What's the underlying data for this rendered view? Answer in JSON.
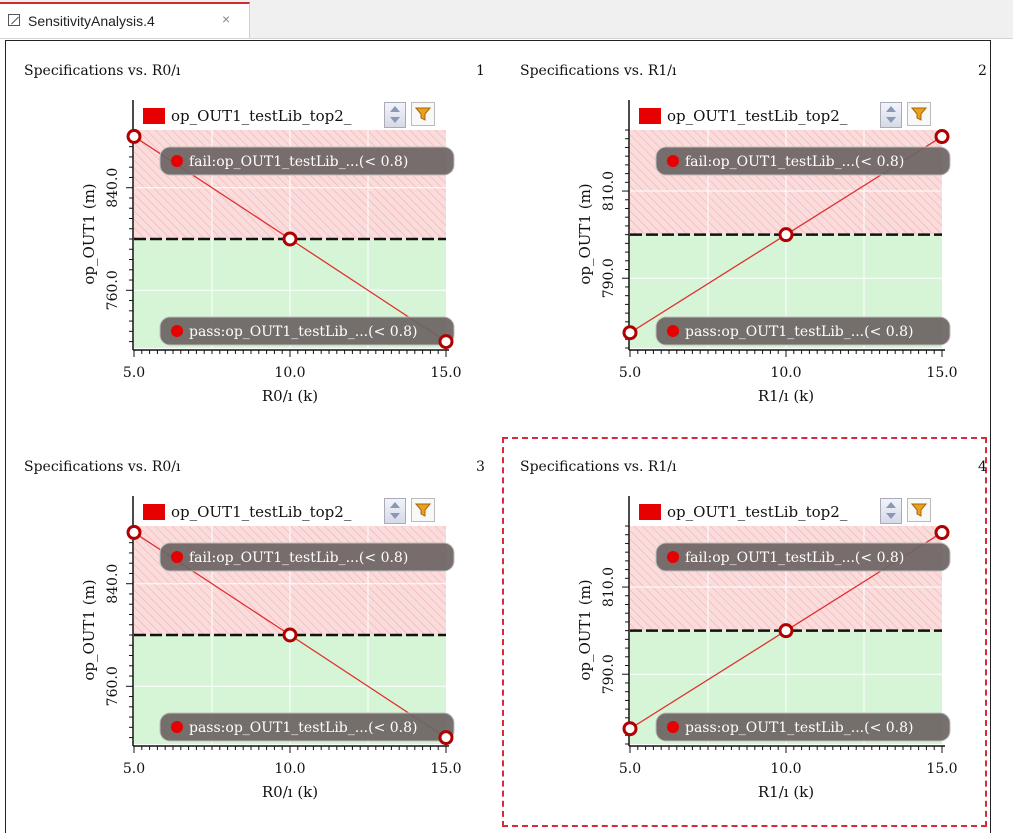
{
  "tab": {
    "label": "SensitivityAnalysis.4",
    "close": "×"
  },
  "colors": {
    "accent": "#d42a2a",
    "fail_region": "#fadcdc",
    "pass_region": "#d6f5d6",
    "line": "#e03030",
    "marker": "#b00000",
    "pill": "#6e6464"
  },
  "chart_data": [
    {
      "type": "line",
      "title": "Specifications vs. R0/ı",
      "number": "1",
      "legend": "op_OUT1_testLib_top2_",
      "xlabel": "R0/ı (k)",
      "ylabel": "op_OUT1 (m)",
      "x": [
        5.0,
        10.0,
        15.0
      ],
      "series": [
        {
          "values": [
            880.0,
            800.0,
            720.0
          ]
        }
      ],
      "xlim": [
        5.0,
        15.0
      ],
      "ylim": [
        715.0,
        885.0
      ],
      "xticks": [
        "5.0",
        "10.0",
        "15.0"
      ],
      "yticks": [
        760.0,
        840.0
      ],
      "yticklabels": [
        "760.0",
        "840.0"
      ],
      "threshold": 800.0,
      "fail_label": "fail:op_OUT1_testLib_...(< 0.8)",
      "pass_label": "pass:op_OUT1_testLib_...(< 0.8)",
      "grid": true,
      "selected": false
    },
    {
      "type": "line",
      "title": "Specifications vs. R1/ı",
      "number": "2",
      "legend": "op_OUT1_testLib_top2_",
      "xlabel": "R1/ı (k)",
      "ylabel": "op_OUT1 (m)",
      "x": [
        5.0,
        10.0,
        15.0
      ],
      "series": [
        {
          "values": [
            777.5,
            800.0,
            822.5
          ]
        }
      ],
      "xlim": [
        5.0,
        15.0
      ],
      "ylim": [
        774.0,
        824.0
      ],
      "xticks": [
        "5.0",
        "10.0",
        "15.0"
      ],
      "yticks": [
        790.0,
        810.0
      ],
      "yticklabels": [
        "790.0",
        "810.0"
      ],
      "threshold": 800.0,
      "fail_label": "fail:op_OUT1_testLib_...(< 0.8)",
      "pass_label": "pass:op_OUT1_testLib_...(< 0.8)",
      "grid": true,
      "selected": false
    },
    {
      "type": "line",
      "title": "Specifications vs. R0/ı",
      "number": "3",
      "legend": "op_OUT1_testLib_top2_",
      "xlabel": "R0/ı (k)",
      "ylabel": "op_OUT1 (m)",
      "x": [
        5.0,
        10.0,
        15.0
      ],
      "series": [
        {
          "values": [
            880.0,
            800.0,
            720.0
          ]
        }
      ],
      "xlim": [
        5.0,
        15.0
      ],
      "ylim": [
        715.0,
        885.0
      ],
      "xticks": [
        "5.0",
        "10.0",
        "15.0"
      ],
      "yticks": [
        760.0,
        840.0
      ],
      "yticklabels": [
        "760.0",
        "840.0"
      ],
      "threshold": 800.0,
      "fail_label": "fail:op_OUT1_testLib_...(< 0.8)",
      "pass_label": "pass:op_OUT1_testLib_...(< 0.8)",
      "grid": true,
      "selected": false
    },
    {
      "type": "line",
      "title": "Specifications vs. R1/ı",
      "number": "4",
      "legend": "op_OUT1_testLib_top2_",
      "xlabel": "R1/ı (k)",
      "ylabel": "op_OUT1 (m)",
      "x": [
        5.0,
        10.0,
        15.0
      ],
      "series": [
        {
          "values": [
            777.5,
            800.0,
            822.5
          ]
        }
      ],
      "xlim": [
        5.0,
        15.0
      ],
      "ylim": [
        774.0,
        824.0
      ],
      "xticks": [
        "5.0",
        "10.0",
        "15.0"
      ],
      "yticks": [
        790.0,
        810.0
      ],
      "yticklabels": [
        "790.0",
        "810.0"
      ],
      "threshold": 800.0,
      "fail_label": "fail:op_OUT1_testLib_...(< 0.8)",
      "pass_label": "pass:op_OUT1_testLib_...(< 0.8)",
      "grid": true,
      "selected": true
    }
  ]
}
